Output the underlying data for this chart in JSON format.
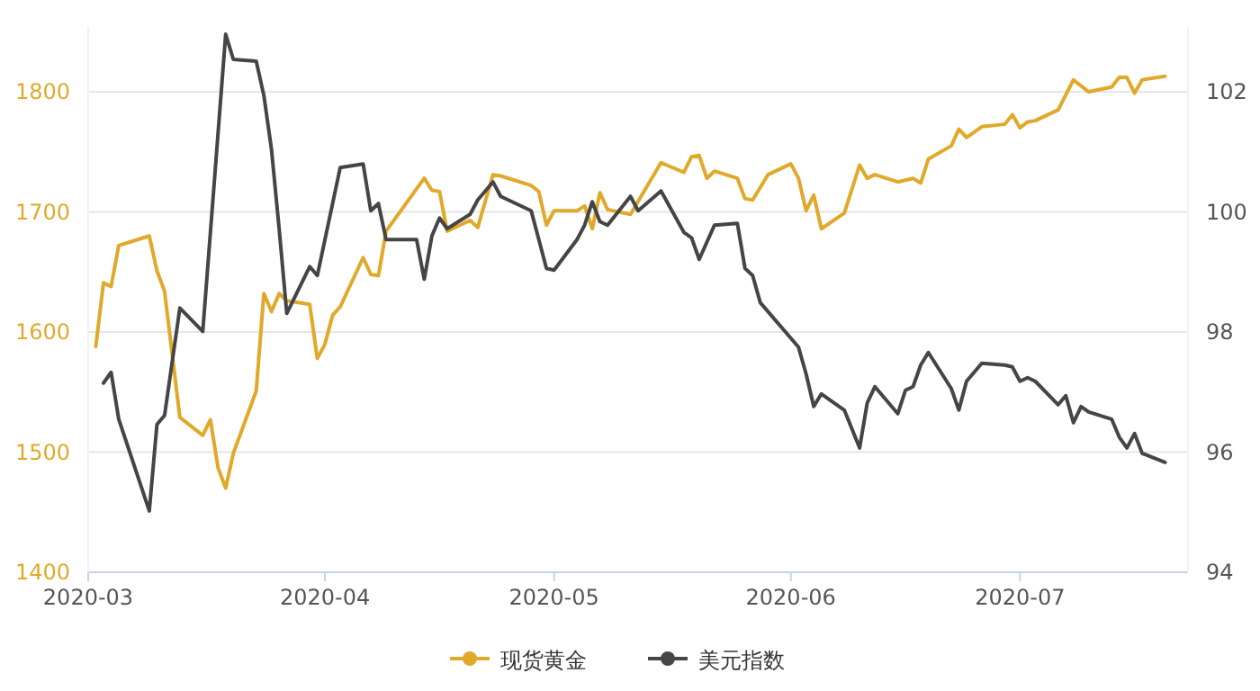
{
  "chart_data": {
    "type": "line",
    "xlim": [
      "2020-03-01",
      "2020-07-23"
    ],
    "xticks": [
      "2020-03",
      "2020-04",
      "2020-05",
      "2020-06",
      "2020-07"
    ],
    "ylim": [
      1400,
      1854
    ],
    "yticks": [
      1400,
      1500,
      1600,
      1700,
      1800
    ],
    "y2lim": [
      94,
      103.08
    ],
    "y2ticks": [
      94,
      96,
      98,
      100,
      102
    ],
    "grid": "y",
    "legend": "bottom",
    "line_style": "solid",
    "series": [
      {
        "name": "现货黄金",
        "color": "#e0a92a",
        "x": [
          "2020-03-02",
          "2020-03-03",
          "2020-03-04",
          "2020-03-05",
          "2020-03-09",
          "2020-03-10",
          "2020-03-11",
          "2020-03-13",
          "2020-03-16",
          "2020-03-17",
          "2020-03-18",
          "2020-03-19",
          "2020-03-20",
          "2020-03-23",
          "2020-03-24",
          "2020-03-25",
          "2020-03-26",
          "2020-03-27",
          "2020-03-30",
          "2020-03-31",
          "2020-04-01",
          "2020-04-02",
          "2020-04-03",
          "2020-04-06",
          "2020-04-07",
          "2020-04-08",
          "2020-04-09",
          "2020-04-14",
          "2020-04-15",
          "2020-04-16",
          "2020-04-17",
          "2020-04-20",
          "2020-04-21",
          "2020-04-23",
          "2020-04-24",
          "2020-04-28",
          "2020-04-29",
          "2020-04-30",
          "2020-05-01",
          "2020-05-04",
          "2020-05-05",
          "2020-05-06",
          "2020-05-07",
          "2020-05-08",
          "2020-05-11",
          "2020-05-15",
          "2020-05-18",
          "2020-05-19",
          "2020-05-20",
          "2020-05-21",
          "2020-05-22",
          "2020-05-25",
          "2020-05-26",
          "2020-05-27",
          "2020-05-29",
          "2020-06-01",
          "2020-06-02",
          "2020-06-03",
          "2020-06-04",
          "2020-06-05",
          "2020-06-08",
          "2020-06-10",
          "2020-06-11",
          "2020-06-12",
          "2020-06-15",
          "2020-06-17",
          "2020-06-18",
          "2020-06-19",
          "2020-06-22",
          "2020-06-23",
          "2020-06-24",
          "2020-06-26",
          "2020-06-29",
          "2020-06-30",
          "2020-07-01",
          "2020-07-02",
          "2020-07-03",
          "2020-07-06",
          "2020-07-08",
          "2020-07-10",
          "2020-07-13",
          "2020-07-14",
          "2020-07-15",
          "2020-07-16",
          "2020-07-17",
          "2020-07-20"
        ],
        "values": [
          1588,
          1641,
          1638,
          1672,
          1680,
          1651,
          1634,
          1529,
          1514,
          1527,
          1487,
          1470,
          1499,
          1551,
          1632,
          1617,
          1632,
          1626,
          1623,
          1578,
          1590,
          1614,
          1621,
          1662,
          1648,
          1647,
          1684,
          1728,
          1718,
          1717,
          1684,
          1693,
          1687,
          1731,
          1730,
          1722,
          1717,
          1689,
          1701,
          1701,
          1705,
          1686,
          1716,
          1702,
          1698,
          1741,
          1733,
          1746,
          1747,
          1728,
          1734,
          1728,
          1711,
          1710,
          1731,
          1740,
          1728,
          1701,
          1714,
          1686,
          1699,
          1739,
          1728,
          1731,
          1725,
          1728,
          1724,
          1744,
          1755,
          1769,
          1762,
          1771,
          1773,
          1781,
          1770,
          1775,
          1776,
          1785,
          1810,
          1800,
          1804,
          1812,
          1812,
          1799,
          1810,
          1813
        ]
      },
      {
        "name": "美元指数",
        "color": "#454545",
        "axis": "y2",
        "x": [
          "2020-03-03",
          "2020-03-04",
          "2020-03-05",
          "2020-03-09",
          "2020-03-10",
          "2020-03-11",
          "2020-03-13",
          "2020-03-16",
          "2020-03-19",
          "2020-03-20",
          "2020-03-23",
          "2020-03-24",
          "2020-03-25",
          "2020-03-26",
          "2020-03-27",
          "2020-03-30",
          "2020-03-31",
          "2020-04-03",
          "2020-04-06",
          "2020-04-07",
          "2020-04-08",
          "2020-04-09",
          "2020-04-13",
          "2020-04-14",
          "2020-04-15",
          "2020-04-16",
          "2020-04-17",
          "2020-04-20",
          "2020-04-21",
          "2020-04-23",
          "2020-04-24",
          "2020-04-28",
          "2020-04-30",
          "2020-05-01",
          "2020-05-04",
          "2020-05-05",
          "2020-05-06",
          "2020-05-07",
          "2020-05-08",
          "2020-05-11",
          "2020-05-12",
          "2020-05-15",
          "2020-05-18",
          "2020-05-19",
          "2020-05-20",
          "2020-05-22",
          "2020-05-25",
          "2020-05-26",
          "2020-05-27",
          "2020-05-28",
          "2020-06-02",
          "2020-06-03",
          "2020-06-04",
          "2020-06-05",
          "2020-06-08",
          "2020-06-10",
          "2020-06-11",
          "2020-06-12",
          "2020-06-15",
          "2020-06-16",
          "2020-06-17",
          "2020-06-18",
          "2020-06-19",
          "2020-06-22",
          "2020-06-23",
          "2020-06-24",
          "2020-06-26",
          "2020-06-29",
          "2020-06-30",
          "2020-07-01",
          "2020-07-02",
          "2020-07-03",
          "2020-07-06",
          "2020-07-07",
          "2020-07-08",
          "2020-07-09",
          "2020-07-10",
          "2020-07-13",
          "2020-07-14",
          "2020-07-15",
          "2020-07-16",
          "2020-07-17",
          "2020-07-20"
        ],
        "values": [
          97.15,
          97.33,
          96.55,
          95.02,
          96.46,
          96.61,
          98.4,
          98.01,
          102.96,
          102.54,
          102.51,
          101.94,
          101.04,
          99.72,
          98.31,
          99.09,
          98.94,
          100.74,
          100.8,
          100.02,
          100.14,
          99.54,
          99.54,
          98.88,
          99.6,
          99.9,
          99.72,
          99.96,
          100.2,
          100.5,
          100.26,
          100.02,
          99.06,
          99.03,
          99.54,
          99.78,
          100.17,
          99.84,
          99.78,
          100.26,
          100.02,
          100.35,
          99.66,
          99.57,
          99.21,
          99.78,
          99.81,
          99.06,
          98.94,
          98.49,
          97.75,
          97.3,
          96.76,
          96.97,
          96.7,
          96.07,
          96.82,
          97.09,
          96.64,
          97.03,
          97.09,
          97.45,
          97.66,
          97.06,
          96.7,
          97.18,
          97.48,
          97.45,
          97.42,
          97.18,
          97.24,
          97.18,
          96.79,
          96.94,
          96.49,
          96.76,
          96.67,
          96.55,
          96.25,
          96.07,
          96.31,
          95.98,
          95.83
        ]
      }
    ]
  }
}
